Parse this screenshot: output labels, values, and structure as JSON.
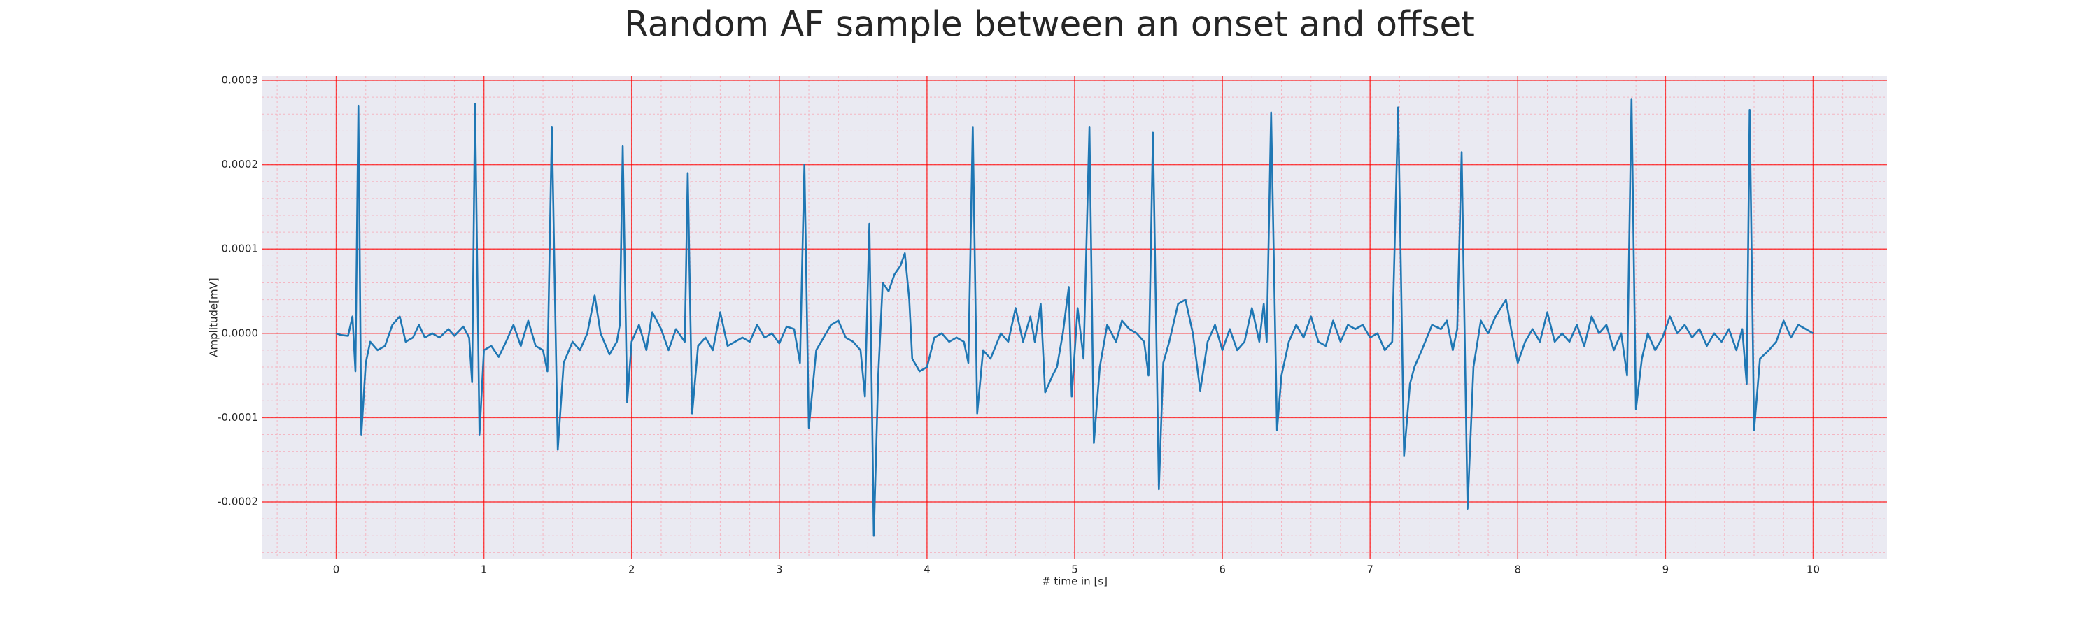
{
  "chart_data": {
    "type": "line",
    "title": "Random AF sample between an onset and offset",
    "x_label": "# time in [s]",
    "y_label": "Amplitude[mV]",
    "color": "#1f77b4",
    "grid": true,
    "minor_grid": true,
    "xlim": [
      -0.5,
      10.5
    ],
    "ylim": [
      -0.000268,
      0.000305
    ],
    "xticks": [
      0,
      1,
      2,
      3,
      4,
      5,
      6,
      7,
      8,
      9,
      10
    ],
    "yticks": [
      -0.0002,
      -0.0001,
      {
        "value": 0,
        "label": "0.0000"
      },
      0.0001,
      0.0002,
      0.0003
    ],
    "x": [
      0.0,
      0.03,
      0.08,
      0.11,
      0.13,
      0.15,
      0.17,
      0.2,
      0.23,
      0.28,
      0.33,
      0.38,
      0.43,
      0.47,
      0.52,
      0.56,
      0.6,
      0.65,
      0.7,
      0.76,
      0.8,
      0.86,
      0.9,
      0.92,
      0.94,
      0.97,
      1.0,
      1.05,
      1.1,
      1.15,
      1.2,
      1.25,
      1.3,
      1.35,
      1.4,
      1.43,
      1.46,
      1.5,
      1.54,
      1.6,
      1.65,
      1.7,
      1.75,
      1.79,
      1.85,
      1.9,
      1.92,
      1.94,
      1.97,
      2.0,
      2.05,
      2.1,
      2.14,
      2.2,
      2.25,
      2.3,
      2.36,
      2.38,
      2.41,
      2.45,
      2.5,
      2.55,
      2.6,
      2.65,
      2.7,
      2.75,
      2.8,
      2.85,
      2.9,
      2.95,
      3.0,
      3.05,
      3.1,
      3.14,
      3.17,
      3.2,
      3.25,
      3.3,
      3.35,
      3.4,
      3.45,
      3.5,
      3.55,
      3.58,
      3.61,
      3.64,
      3.67,
      3.7,
      3.74,
      3.78,
      3.82,
      3.85,
      3.88,
      3.9,
      3.95,
      4.0,
      4.05,
      4.1,
      4.15,
      4.2,
      4.25,
      4.28,
      4.31,
      4.34,
      4.38,
      4.43,
      4.5,
      4.55,
      4.6,
      4.65,
      4.7,
      4.73,
      4.77,
      4.8,
      4.85,
      4.88,
      4.92,
      4.96,
      4.98,
      5.02,
      5.06,
      5.1,
      5.13,
      5.17,
      5.22,
      5.28,
      5.32,
      5.37,
      5.42,
      5.47,
      5.5,
      5.53,
      5.57,
      5.6,
      5.64,
      5.7,
      5.75,
      5.8,
      5.85,
      5.9,
      5.95,
      6.0,
      6.05,
      6.1,
      6.15,
      6.2,
      6.25,
      6.28,
      6.3,
      6.33,
      6.37,
      6.4,
      6.45,
      6.5,
      6.55,
      6.6,
      6.65,
      6.7,
      6.75,
      6.8,
      6.85,
      6.9,
      6.95,
      7.0,
      7.05,
      7.1,
      7.15,
      7.19,
      7.23,
      7.27,
      7.3,
      7.35,
      7.42,
      7.48,
      7.52,
      7.56,
      7.59,
      7.62,
      7.66,
      7.7,
      7.75,
      7.8,
      7.85,
      7.92,
      7.96,
      8.0,
      8.05,
      8.1,
      8.15,
      8.2,
      8.25,
      8.3,
      8.35,
      8.4,
      8.45,
      8.5,
      8.55,
      8.6,
      8.65,
      8.7,
      8.74,
      8.77,
      8.8,
      8.84,
      8.88,
      8.93,
      8.98,
      9.03,
      9.08,
      9.13,
      9.18,
      9.23,
      9.28,
      9.33,
      9.38,
      9.43,
      9.48,
      9.52,
      9.55,
      9.57,
      9.6,
      9.64,
      9.7,
      9.75,
      9.8,
      9.85,
      9.9,
      9.95,
      10.0
    ],
    "values": [
      0.0,
      -2e-06,
      -3e-06,
      2e-05,
      -4.5e-05,
      0.00027,
      -0.00012,
      -3.5e-05,
      -1e-05,
      -2e-05,
      -1.5e-05,
      1e-05,
      2e-05,
      -1e-05,
      -5e-06,
      1e-05,
      -5e-06,
      0.0,
      -5e-06,
      5e-06,
      -3e-06,
      8e-06,
      -5e-06,
      -5.8e-05,
      0.000272,
      -0.00012,
      -2e-05,
      -1.5e-05,
      -2.8e-05,
      -1e-05,
      1e-05,
      -1.5e-05,
      1.5e-05,
      -1.5e-05,
      -2e-05,
      -4.5e-05,
      0.000245,
      -0.000138,
      -3.5e-05,
      -1e-05,
      -2e-05,
      0.0,
      4.5e-05,
      0.0,
      -2.5e-05,
      -1e-05,
      1e-05,
      0.000222,
      -8.2e-05,
      -1e-05,
      1e-05,
      -2e-05,
      2.5e-05,
      5e-06,
      -2e-05,
      5e-06,
      -1e-05,
      0.00019,
      -9.5e-05,
      -1.5e-05,
      -5e-06,
      -2e-05,
      2.5e-05,
      -1.5e-05,
      -1e-05,
      -5e-06,
      -1e-05,
      1e-05,
      -5e-06,
      0.0,
      -1.2e-05,
      8e-06,
      5e-06,
      -3.5e-05,
      0.0002,
      -0.000112,
      -2e-05,
      -5e-06,
      1e-05,
      1.5e-05,
      -5e-06,
      -1e-05,
      -2e-05,
      -7.5e-05,
      0.00013,
      -0.00024,
      -5e-05,
      6e-05,
      5e-05,
      7e-05,
      8e-05,
      9.5e-05,
      4e-05,
      -3e-05,
      -4.5e-05,
      -4e-05,
      -5e-06,
      0.0,
      -1e-05,
      -5e-06,
      -1e-05,
      -3.5e-05,
      0.000245,
      -9.5e-05,
      -2e-05,
      -3e-05,
      0.0,
      -1e-05,
      3e-05,
      -1e-05,
      2e-05,
      -1e-05,
      3.5e-05,
      -7e-05,
      -5e-05,
      -4e-05,
      0.0,
      5.5e-05,
      -7.5e-05,
      3e-05,
      -3e-05,
      0.000245,
      -0.00013,
      -4e-05,
      1e-05,
      -1e-05,
      1.5e-05,
      5e-06,
      0.0,
      -1e-05,
      -5e-05,
      0.000238,
      -0.000185,
      -3.5e-05,
      -1e-05,
      3.5e-05,
      4e-05,
      0.0,
      -6.8e-05,
      -1e-05,
      1e-05,
      -2e-05,
      5e-06,
      -2e-05,
      -1e-05,
      3e-05,
      -1e-05,
      3.5e-05,
      -1e-05,
      0.000262,
      -0.000115,
      -5e-05,
      -1e-05,
      1e-05,
      -5e-06,
      2e-05,
      -1e-05,
      -1.5e-05,
      1.5e-05,
      -1e-05,
      1e-05,
      5e-06,
      1e-05,
      -5e-06,
      0.0,
      -2e-05,
      -1e-05,
      0.000268,
      -0.000145,
      -6e-05,
      -4e-05,
      -2e-05,
      1e-05,
      5e-06,
      1.5e-05,
      -2e-05,
      5e-06,
      0.000215,
      -0.000208,
      -4e-05,
      1.5e-05,
      0.0,
      2e-05,
      4e-05,
      0.0,
      -3.5e-05,
      -1e-05,
      5e-06,
      -1e-05,
      2.5e-05,
      -1e-05,
      0.0,
      -1e-05,
      1e-05,
      -1.5e-05,
      2e-05,
      0.0,
      1e-05,
      -2e-05,
      0.0,
      -5e-05,
      0.000278,
      -9e-05,
      -3e-05,
      0.0,
      -2e-05,
      -5e-06,
      2e-05,
      0.0,
      1e-05,
      -5e-06,
      5e-06,
      -1.5e-05,
      0.0,
      -1e-05,
      5e-06,
      -2e-05,
      5e-06,
      -6e-05,
      0.000265,
      -0.000115,
      -3e-05,
      -2e-05,
      -1e-05,
      1.5e-05,
      -5e-06,
      1e-05,
      5e-06,
      0.0
    ]
  }
}
